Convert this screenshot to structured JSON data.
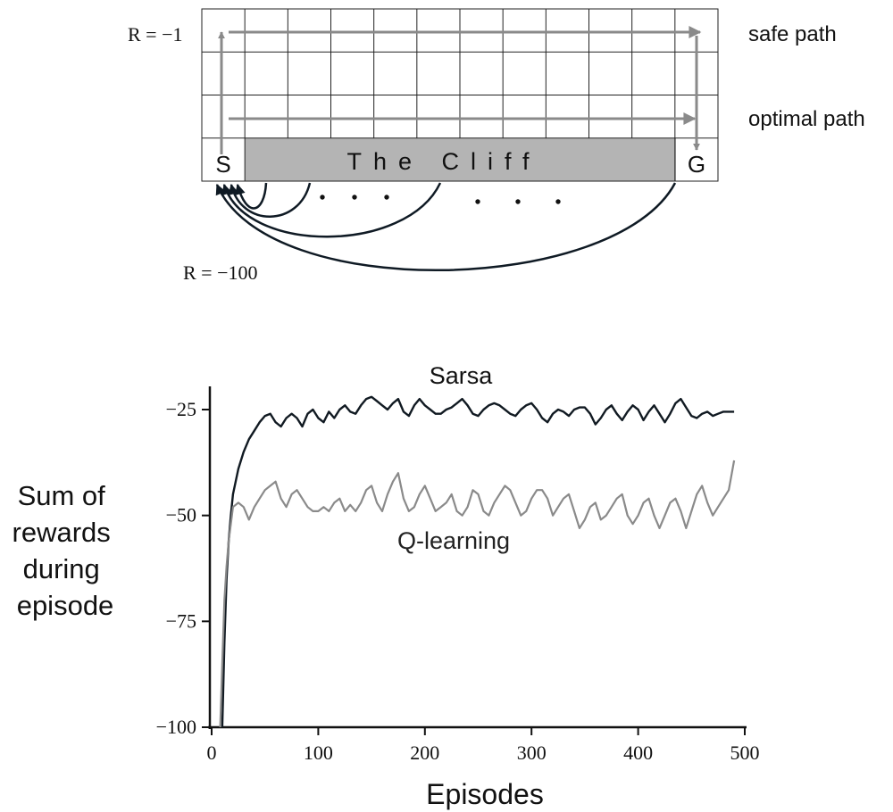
{
  "gridworld": {
    "start_label": "S",
    "goal_label": "G",
    "cliff_label": "The Cliff",
    "reward_step": "R = −1",
    "reward_cliff": "R = −100",
    "safe_path_label": "safe path",
    "optimal_path_label": "optimal path",
    "colors": {
      "cliff": "#b4b4b4",
      "path": "#8a8a8a",
      "return_arrows": "#0f1a24",
      "grid": "#222222"
    }
  },
  "chart_data": {
    "type": "line",
    "xlabel": "Episodes",
    "ylabel": "Sum of rewards during episode",
    "ylabel_lines": [
      "Sum of",
      "rewards",
      "during",
      "episode"
    ],
    "xlim": [
      0,
      500
    ],
    "ylim": [
      -100,
      -20
    ],
    "x_ticks": [
      0,
      100,
      200,
      300,
      400,
      500
    ],
    "x_tick_labels": [
      "0",
      "100",
      "200",
      "300",
      "400",
      "500"
    ],
    "y_ticks": [
      -25,
      -50,
      -75,
      -100
    ],
    "y_tick_labels": [
      "−25",
      "−50",
      "−75",
      "−100"
    ],
    "grid": false,
    "series": [
      {
        "name": "Sarsa",
        "color": "#111a22",
        "x": [
          10,
          12,
          14,
          16,
          18,
          20,
          25,
          30,
          35,
          40,
          45,
          50,
          55,
          60,
          65,
          70,
          75,
          80,
          85,
          90,
          95,
          100,
          105,
          110,
          115,
          120,
          125,
          130,
          135,
          140,
          145,
          150,
          155,
          160,
          165,
          170,
          175,
          180,
          185,
          190,
          195,
          200,
          205,
          210,
          215,
          220,
          225,
          230,
          235,
          240,
          245,
          250,
          255,
          260,
          265,
          270,
          275,
          280,
          285,
          290,
          295,
          300,
          305,
          310,
          315,
          320,
          325,
          330,
          335,
          340,
          345,
          350,
          355,
          360,
          365,
          370,
          375,
          380,
          385,
          390,
          395,
          400,
          405,
          410,
          415,
          420,
          425,
          430,
          435,
          440,
          445,
          450,
          455,
          460,
          465,
          470,
          475,
          480,
          485,
          490
        ],
        "values": [
          -100,
          -80,
          -65,
          -56,
          -50,
          -45,
          -39,
          -35,
          -32,
          -30,
          -28,
          -26.5,
          -26,
          -28,
          -29,
          -27,
          -26,
          -27,
          -29,
          -26,
          -25,
          -27,
          -28,
          -25.5,
          -27,
          -25,
          -24,
          -25.5,
          -26,
          -24,
          -22.5,
          -22,
          -23,
          -24,
          -25,
          -23.5,
          -22.5,
          -25.5,
          -26.5,
          -24,
          -22.5,
          -24,
          -25,
          -26,
          -26,
          -25,
          -24.5,
          -23.5,
          -22.5,
          -24,
          -26,
          -26.5,
          -25,
          -24,
          -23.5,
          -24,
          -25,
          -26,
          -26.5,
          -25,
          -24,
          -23.5,
          -25,
          -27,
          -28,
          -26,
          -25,
          -25.5,
          -26.5,
          -25,
          -24.5,
          -24.5,
          -26,
          -28.5,
          -27,
          -25,
          -24,
          -26,
          -27.5,
          -25.5,
          -24,
          -25,
          -27.5,
          -25.5,
          -24,
          -26,
          -28,
          -26,
          -23.5,
          -22.5,
          -24.5,
          -26.5,
          -27,
          -26,
          -25.5,
          -26.5,
          -26,
          -25.5,
          -25.5,
          -25.5
        ]
      },
      {
        "name": "Q-learning",
        "color": "#8a8a8a",
        "x": [
          8,
          10,
          12,
          14,
          16,
          18,
          20,
          25,
          30,
          35,
          40,
          45,
          50,
          55,
          60,
          65,
          70,
          75,
          80,
          85,
          90,
          95,
          100,
          105,
          110,
          115,
          120,
          125,
          130,
          135,
          140,
          145,
          150,
          155,
          160,
          165,
          170,
          175,
          180,
          185,
          190,
          195,
          200,
          205,
          210,
          215,
          220,
          225,
          230,
          235,
          240,
          245,
          250,
          255,
          260,
          265,
          270,
          275,
          280,
          285,
          290,
          295,
          300,
          305,
          310,
          315,
          320,
          325,
          330,
          335,
          340,
          345,
          350,
          355,
          360,
          365,
          370,
          375,
          380,
          385,
          390,
          395,
          400,
          405,
          410,
          415,
          420,
          425,
          430,
          435,
          440,
          445,
          450,
          455,
          460,
          465,
          470,
          475,
          480,
          485,
          490
        ],
        "values": [
          -100,
          -85,
          -70,
          -62,
          -56,
          -52,
          -48,
          -47,
          -48,
          -51,
          -48,
          -46,
          -44,
          -43,
          -42,
          -46,
          -48,
          -45,
          -44,
          -46,
          -48,
          -49,
          -49,
          -48,
          -49,
          -47,
          -46,
          -49,
          -47.5,
          -49,
          -47,
          -44,
          -43,
          -47,
          -49,
          -45,
          -42,
          -40,
          -46,
          -49,
          -48,
          -45,
          -43,
          -46,
          -49,
          -48,
          -47,
          -45,
          -49,
          -50,
          -48,
          -44,
          -45,
          -49,
          -50,
          -47,
          -45,
          -43,
          -44,
          -47,
          -50,
          -49,
          -46,
          -44,
          -44,
          -46,
          -50,
          -48,
          -46,
          -45,
          -49,
          -53,
          -51,
          -48,
          -47,
          -51,
          -50,
          -48,
          -46,
          -45,
          -50,
          -52,
          -50,
          -47,
          -46,
          -50,
          -53,
          -50,
          -47,
          -46,
          -49,
          -53,
          -49,
          -45,
          -43,
          -47,
          -50,
          -48,
          -46,
          -44,
          -37
        ]
      }
    ]
  }
}
